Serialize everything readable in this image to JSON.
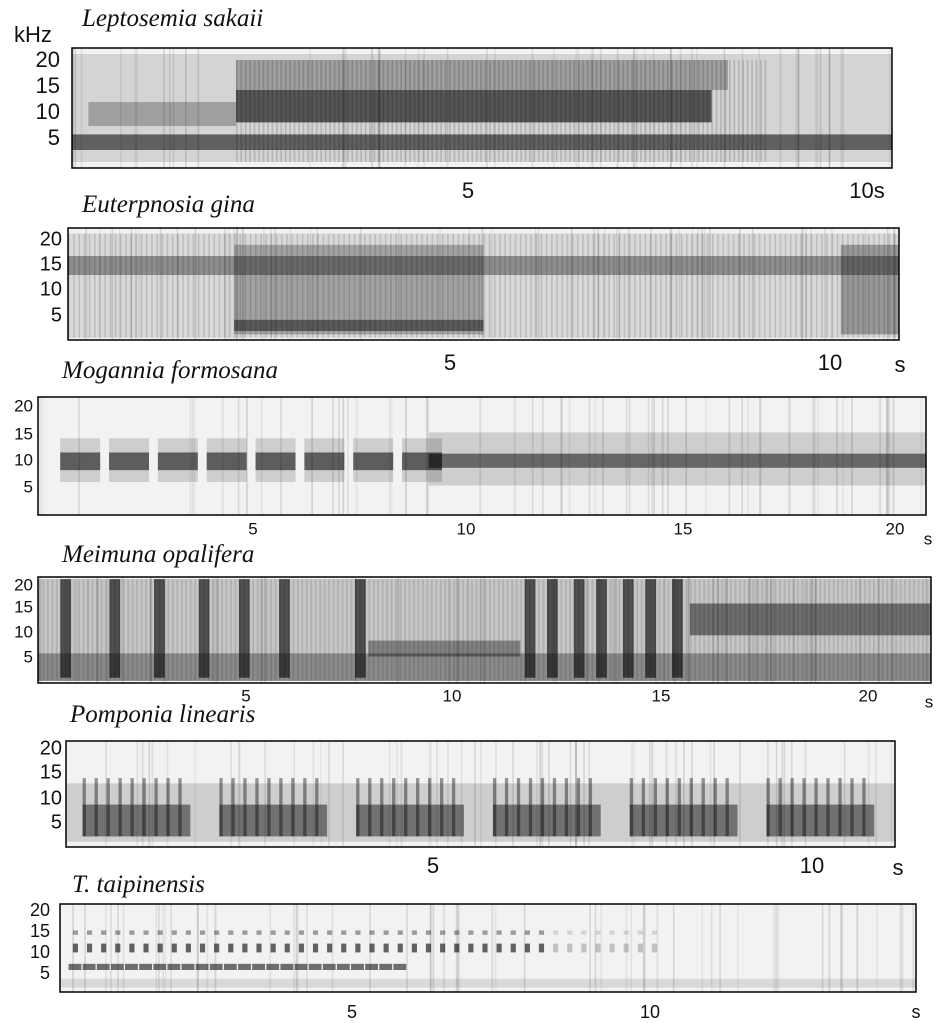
{
  "panels": [
    {
      "title": "Leptosemia sakaii",
      "y_unit": "kHz",
      "yticks": [
        "20",
        "15",
        "10",
        "5"
      ],
      "xticks": [
        "5",
        "10s"
      ]
    },
    {
      "title": "Euterpnosia gina",
      "yticks": [
        "20",
        "15",
        "10",
        "5"
      ],
      "xticks": [
        "5",
        "10",
        "s"
      ]
    },
    {
      "title": "Mogannia formosana",
      "yticks": [
        "20",
        "15",
        "10",
        "5"
      ],
      "xticks": [
        "5",
        "10",
        "15",
        "20",
        "s"
      ]
    },
    {
      "title": "Meimuna opalifera",
      "yticks": [
        "20",
        "15",
        "10",
        "5"
      ],
      "xticks": [
        "5",
        "10",
        "15",
        "20",
        "s"
      ]
    },
    {
      "title": "Pomponia linearis",
      "yticks": [
        "20",
        "15",
        "10",
        "5"
      ],
      "xticks": [
        "5",
        "10",
        "s"
      ]
    },
    {
      "title": "T. taipinensis",
      "yticks": [
        "20",
        "15",
        "10",
        "5"
      ],
      "xticks": [
        "5",
        "10",
        "s"
      ]
    }
  ]
}
